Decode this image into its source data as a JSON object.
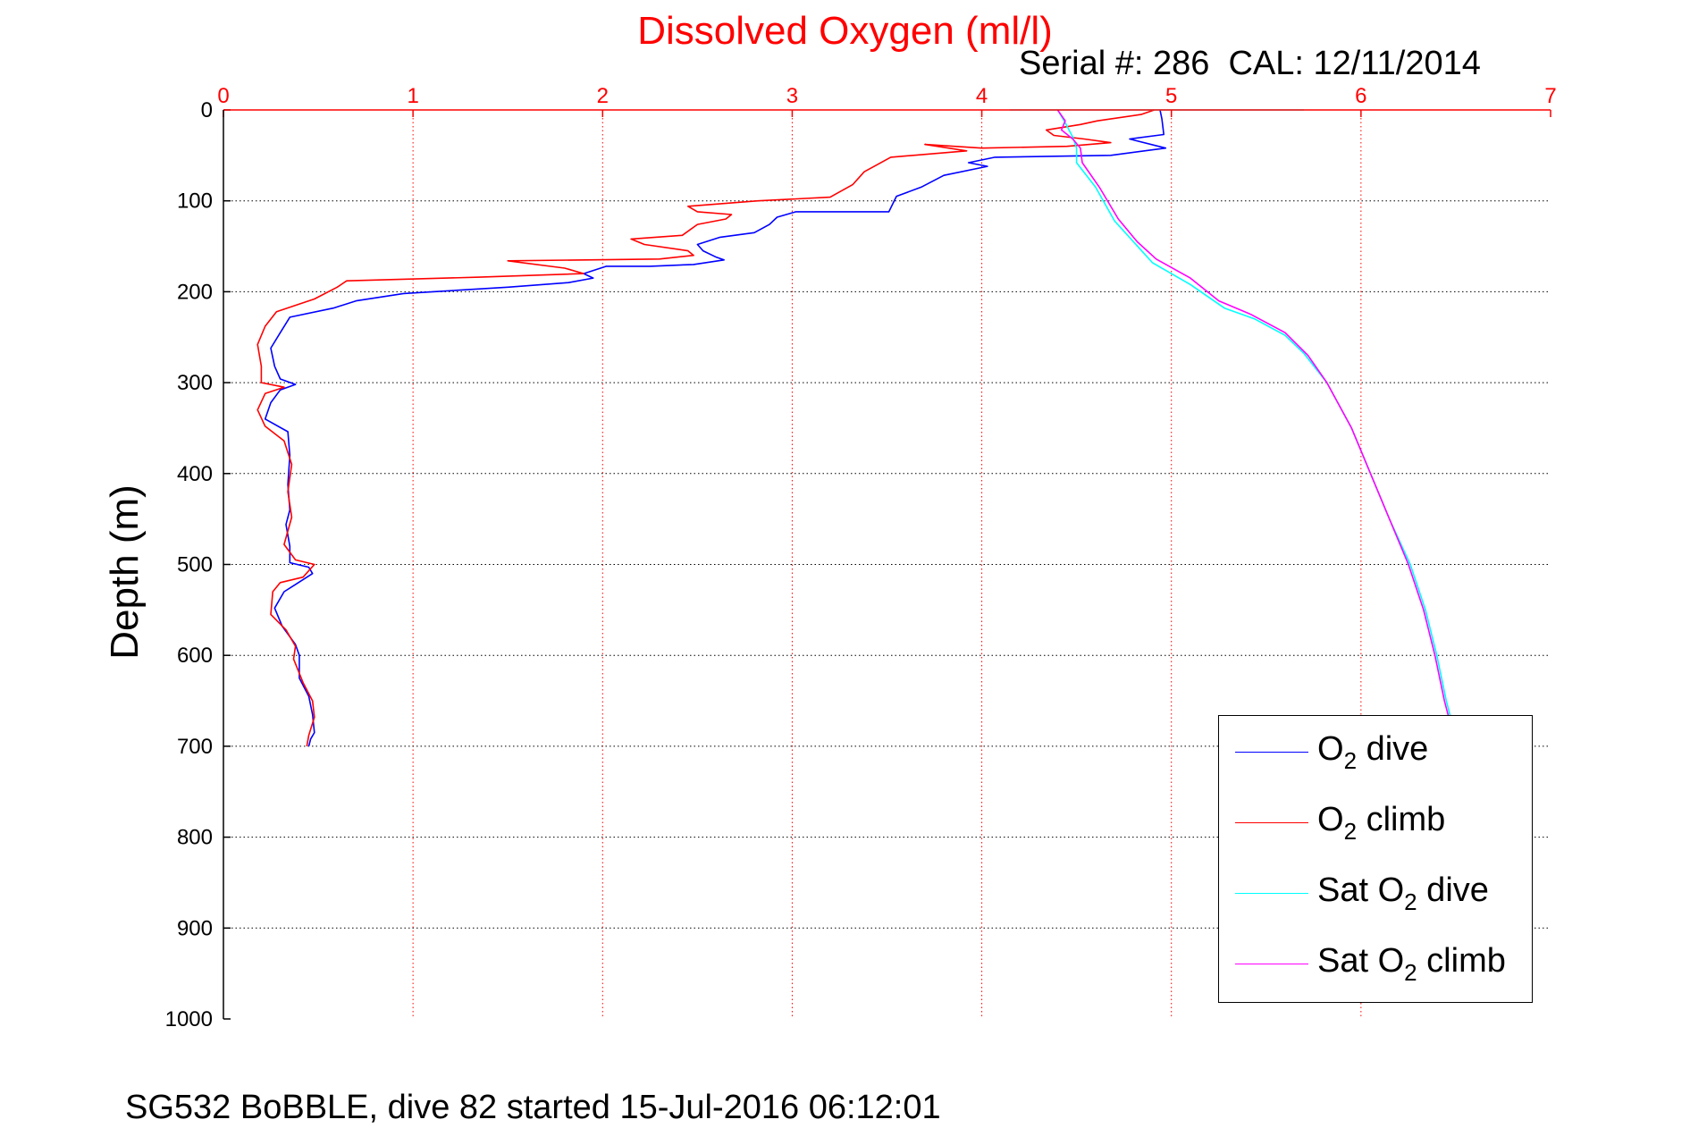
{
  "title": "Dissolved Oxygen (ml/l)",
  "serial_text": "Serial #: 286  CAL: 12/11/2014",
  "footer": "SG532 BoBBLE, dive 82 started 15-Jul-2016 06:12:01",
  "ylabel": "Depth (m)",
  "colors": {
    "title": "#ff0000",
    "xticks": "#ff0000",
    "dive": "#0000ff",
    "climb": "#ff0000",
    "sat_dive": "#00ffff",
    "sat_climb": "#ff00ff"
  },
  "legend": {
    "items": [
      {
        "pre": "O",
        "sub": "2",
        "post": " dive",
        "color": "#0000ff"
      },
      {
        "pre": "O",
        "sub": "2",
        "post": " climb",
        "color": "#ff0000"
      },
      {
        "pre": "Sat O",
        "sub": "2",
        "post": " dive",
        "color": "#00ffff"
      },
      {
        "pre": "Sat O",
        "sub": "2",
        "post": " climb",
        "color": "#ff00ff"
      }
    ],
    "placement": "lower-right"
  },
  "chart_data": {
    "type": "line",
    "title": "Dissolved Oxygen (ml/l)",
    "xlabel": "",
    "ylabel": "Depth (m)",
    "xlim": [
      0,
      7
    ],
    "ylim": [
      0,
      1000
    ],
    "y_reversed": true,
    "x_axis_position": "top",
    "grid": true,
    "x_ticks": [
      "0",
      "1",
      "2",
      "3",
      "4",
      "5",
      "6",
      "7"
    ],
    "y_ticks": [
      "0",
      "100",
      "200",
      "300",
      "400",
      "500",
      "600",
      "700",
      "800",
      "900",
      "1000"
    ],
    "series": [
      {
        "name": "O2 dive",
        "color": "#0000ff",
        "points": [
          [
            4.94,
            0
          ],
          [
            4.95,
            10
          ],
          [
            4.96,
            27
          ],
          [
            4.78,
            32
          ],
          [
            4.97,
            42
          ],
          [
            4.68,
            50
          ],
          [
            4.07,
            52
          ],
          [
            3.93,
            58
          ],
          [
            4.03,
            62
          ],
          [
            3.8,
            72
          ],
          [
            3.68,
            85
          ],
          [
            3.55,
            95
          ],
          [
            3.51,
            112
          ],
          [
            3.02,
            112
          ],
          [
            2.92,
            118
          ],
          [
            2.88,
            126
          ],
          [
            2.8,
            135
          ],
          [
            2.62,
            140
          ],
          [
            2.5,
            148
          ],
          [
            2.53,
            155
          ],
          [
            2.6,
            162
          ],
          [
            2.64,
            165
          ],
          [
            2.48,
            170
          ],
          [
            2.25,
            172
          ],
          [
            2.02,
            172
          ],
          [
            1.9,
            180
          ],
          [
            1.95,
            185
          ],
          [
            1.82,
            190
          ],
          [
            1.5,
            195
          ],
          [
            0.95,
            202
          ],
          [
            0.7,
            210
          ],
          [
            0.58,
            218
          ],
          [
            0.35,
            228
          ],
          [
            0.3,
            245
          ],
          [
            0.25,
            262
          ],
          [
            0.27,
            282
          ],
          [
            0.3,
            296
          ],
          [
            0.38,
            302
          ],
          [
            0.3,
            308
          ],
          [
            0.25,
            322
          ],
          [
            0.22,
            340
          ],
          [
            0.34,
            354
          ],
          [
            0.35,
            380
          ],
          [
            0.34,
            412
          ],
          [
            0.35,
            440
          ],
          [
            0.33,
            456
          ],
          [
            0.35,
            480
          ],
          [
            0.35,
            498
          ],
          [
            0.45,
            503
          ],
          [
            0.47,
            510
          ],
          [
            0.38,
            522
          ],
          [
            0.32,
            530
          ],
          [
            0.27,
            548
          ],
          [
            0.31,
            568
          ],
          [
            0.38,
            588
          ],
          [
            0.4,
            600
          ],
          [
            0.4,
            625
          ],
          [
            0.45,
            645
          ],
          [
            0.47,
            665
          ],
          [
            0.48,
            685
          ],
          [
            0.46,
            692
          ],
          [
            0.45,
            700
          ]
        ]
      },
      {
        "name": "O2 climb",
        "color": "#ff0000",
        "points": [
          [
            4.91,
            0
          ],
          [
            4.84,
            5
          ],
          [
            4.61,
            12
          ],
          [
            4.52,
            16
          ],
          [
            4.34,
            22
          ],
          [
            4.38,
            28
          ],
          [
            4.54,
            32
          ],
          [
            4.68,
            36
          ],
          [
            4.45,
            40
          ],
          [
            4.0,
            42
          ],
          [
            3.7,
            38
          ],
          [
            3.92,
            45
          ],
          [
            3.52,
            52
          ],
          [
            3.38,
            68
          ],
          [
            3.32,
            82
          ],
          [
            3.2,
            96
          ],
          [
            2.82,
            100
          ],
          [
            2.45,
            106
          ],
          [
            2.5,
            112
          ],
          [
            2.68,
            115
          ],
          [
            2.65,
            120
          ],
          [
            2.5,
            126
          ],
          [
            2.42,
            138
          ],
          [
            2.15,
            142
          ],
          [
            2.22,
            148
          ],
          [
            2.45,
            155
          ],
          [
            2.48,
            160
          ],
          [
            2.3,
            164
          ],
          [
            1.5,
            166
          ],
          [
            1.8,
            174
          ],
          [
            1.9,
            180
          ],
          [
            1.35,
            184
          ],
          [
            0.65,
            188
          ],
          [
            0.6,
            195
          ],
          [
            0.48,
            208
          ],
          [
            0.28,
            222
          ],
          [
            0.22,
            238
          ],
          [
            0.18,
            258
          ],
          [
            0.2,
            282
          ],
          [
            0.2,
            300
          ],
          [
            0.32,
            305
          ],
          [
            0.22,
            312
          ],
          [
            0.18,
            330
          ],
          [
            0.22,
            348
          ],
          [
            0.32,
            364
          ],
          [
            0.36,
            390
          ],
          [
            0.34,
            420
          ],
          [
            0.36,
            448
          ],
          [
            0.32,
            478
          ],
          [
            0.38,
            495
          ],
          [
            0.48,
            500
          ],
          [
            0.42,
            514
          ],
          [
            0.3,
            520
          ],
          [
            0.26,
            530
          ],
          [
            0.25,
            555
          ],
          [
            0.33,
            572
          ],
          [
            0.38,
            590
          ],
          [
            0.37,
            604
          ],
          [
            0.42,
            630
          ],
          [
            0.47,
            650
          ],
          [
            0.48,
            668
          ],
          [
            0.45,
            688
          ],
          [
            0.44,
            700
          ]
        ]
      },
      {
        "name": "Sat O2 dive",
        "color": "#00ffff",
        "points": [
          [
            5.7,
            0
          ],
          [
            4.15,
            0
          ],
          [
            4.4,
            0
          ],
          [
            4.44,
            14
          ],
          [
            4.48,
            30
          ],
          [
            4.5,
            42
          ],
          [
            4.5,
            58
          ],
          [
            4.6,
            85
          ],
          [
            4.7,
            122
          ],
          [
            4.8,
            145
          ],
          [
            4.9,
            168
          ],
          [
            5.1,
            192
          ],
          [
            5.28,
            218
          ],
          [
            5.44,
            230
          ],
          [
            5.6,
            248
          ],
          [
            5.7,
            268
          ],
          [
            5.82,
            300
          ],
          [
            5.95,
            350
          ],
          [
            6.05,
            400
          ],
          [
            6.15,
            450
          ],
          [
            6.26,
            500
          ],
          [
            6.34,
            550
          ],
          [
            6.4,
            600
          ],
          [
            6.45,
            650
          ],
          [
            6.48,
            674
          ]
        ]
      },
      {
        "name": "Sat O2 climb",
        "color": "#ff00ff",
        "points": [
          [
            4.4,
            0
          ],
          [
            4.44,
            12
          ],
          [
            4.42,
            22
          ],
          [
            4.48,
            32
          ],
          [
            4.52,
            42
          ],
          [
            4.53,
            58
          ],
          [
            4.62,
            85
          ],
          [
            4.72,
            120
          ],
          [
            4.82,
            145
          ],
          [
            4.92,
            164
          ],
          [
            5.1,
            185
          ],
          [
            5.25,
            210
          ],
          [
            5.42,
            225
          ],
          [
            5.6,
            245
          ],
          [
            5.72,
            270
          ],
          [
            5.82,
            300
          ],
          [
            5.95,
            350
          ],
          [
            6.05,
            400
          ],
          [
            6.15,
            450
          ],
          [
            6.25,
            500
          ],
          [
            6.33,
            550
          ],
          [
            6.39,
            600
          ],
          [
            6.44,
            650
          ],
          [
            6.47,
            674
          ]
        ]
      }
    ]
  }
}
